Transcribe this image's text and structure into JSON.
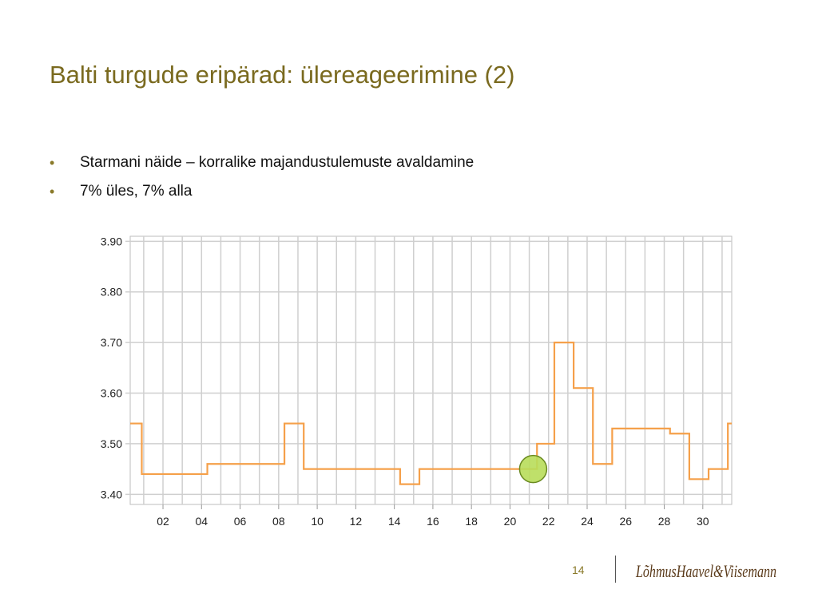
{
  "slide": {
    "title": "Balti turgude eripärad: ülereageerimine (2)",
    "bullets": [
      "Starmani näide – korralike majandustulemuste avaldamine",
      "7% üles, 7% alla"
    ],
    "page_number": "14",
    "logo_text": "LõhmusHaavel&Viisemann"
  },
  "chart_data": {
    "type": "line",
    "step": true,
    "title": "",
    "xlabel": "",
    "ylabel": "",
    "x_ticks": [
      "02",
      "04",
      "06",
      "08",
      "10",
      "12",
      "14",
      "16",
      "18",
      "20",
      "22",
      "24",
      "26",
      "28",
      "30"
    ],
    "y_ticks": [
      "3.40",
      "3.50",
      "3.60",
      "3.70",
      "3.80",
      "3.90"
    ],
    "ylim": [
      3.38,
      3.91
    ],
    "xlim": [
      0.3,
      31.5
    ],
    "grid": true,
    "colors": {
      "line": "#f5a04a",
      "marker": "#b8dd5a",
      "marker_stroke": "#6a8a20",
      "grid": "#cfcfcf"
    },
    "series": [
      {
        "values": [
          {
            "x": 0.3,
            "y": 3.54
          },
          {
            "x": 0.9,
            "y": 3.44
          },
          {
            "x": 4.3,
            "y": 3.46
          },
          {
            "x": 8.3,
            "y": 3.54
          },
          {
            "x": 9.3,
            "y": 3.45
          },
          {
            "x": 14.3,
            "y": 3.42
          },
          {
            "x": 15.3,
            "y": 3.45
          },
          {
            "x": 21.4,
            "y": 3.5
          },
          {
            "x": 22.3,
            "y": 3.7
          },
          {
            "x": 23.3,
            "y": 3.61
          },
          {
            "x": 24.3,
            "y": 3.46
          },
          {
            "x": 25.3,
            "y": 3.53
          },
          {
            "x": 28.3,
            "y": 3.52
          },
          {
            "x": 29.3,
            "y": 3.43
          },
          {
            "x": 30.3,
            "y": 3.45
          },
          {
            "x": 31.3,
            "y": 3.54
          },
          {
            "x": 31.5,
            "y": 3.54
          }
        ]
      }
    ],
    "highlight": {
      "x": 21.2,
      "y": 3.45
    }
  }
}
